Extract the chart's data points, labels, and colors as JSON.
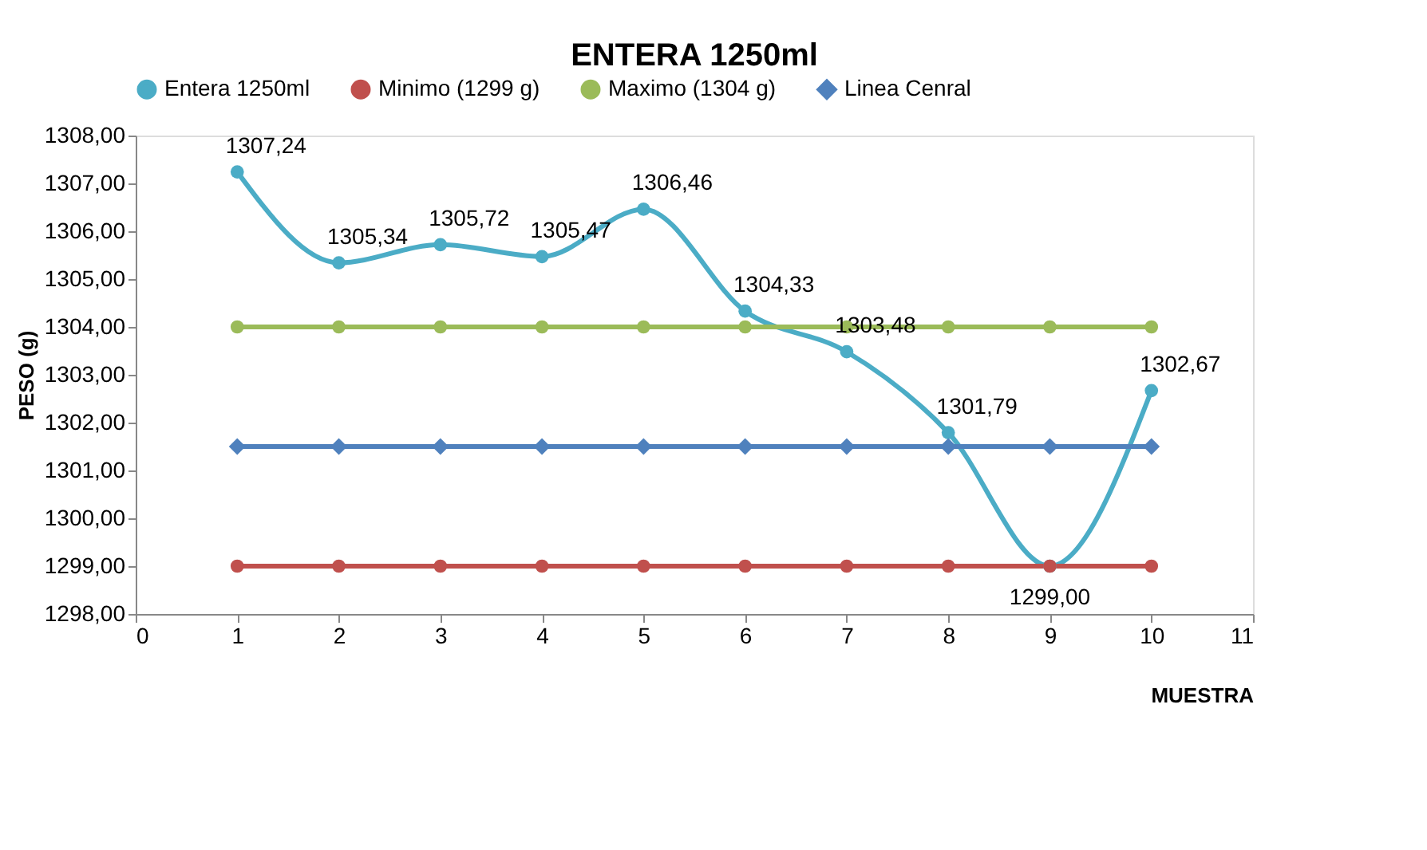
{
  "chart_data": {
    "type": "line",
    "title": "ENTERA 1250ml",
    "xlabel": "MUESTRA",
    "ylabel": "PESO (g)",
    "x": [
      1,
      2,
      3,
      4,
      5,
      6,
      7,
      8,
      9,
      10
    ],
    "series": [
      {
        "name": "Entera 1250ml",
        "color": "#4bacc6",
        "marker": "circle",
        "values": [
          1307.24,
          1305.34,
          1305.72,
          1305.47,
          1306.46,
          1304.33,
          1303.48,
          1301.79,
          1299.0,
          1302.67
        ],
        "value_labels": [
          "1307,24",
          "1305,34",
          "1305,72",
          "1305,47",
          "1306,46",
          "1304,33",
          "1303,48",
          "1301,79",
          "1299,00",
          "1302,67"
        ]
      },
      {
        "name": "Minimo (1299 g)",
        "color": "#c0504d",
        "marker": "circle",
        "values": [
          1299,
          1299,
          1299,
          1299,
          1299,
          1299,
          1299,
          1299,
          1299,
          1299
        ]
      },
      {
        "name": "Maximo (1304 g)",
        "color": "#9bbb59",
        "marker": "circle",
        "values": [
          1304,
          1304,
          1304,
          1304,
          1304,
          1304,
          1304,
          1304,
          1304,
          1304
        ]
      },
      {
        "name": "Linea Cenral",
        "color": "#4f81bd",
        "marker": "diamond",
        "values": [
          1301.5,
          1301.5,
          1301.5,
          1301.5,
          1301.5,
          1301.5,
          1301.5,
          1301.5,
          1301.5,
          1301.5
        ]
      }
    ],
    "xlim": [
      0,
      11
    ],
    "xticks": [
      0,
      1,
      2,
      3,
      4,
      5,
      6,
      7,
      8,
      9,
      10,
      11
    ],
    "ylim": [
      1298,
      1308
    ],
    "yticks": [
      {
        "value": 1298,
        "label": "1298,00"
      },
      {
        "value": 1299,
        "label": "1299,00"
      },
      {
        "value": 1300,
        "label": "1300,00"
      },
      {
        "value": 1301,
        "label": "1301,00"
      },
      {
        "value": 1302,
        "label": "1302,00"
      },
      {
        "value": 1303,
        "label": "1303,00"
      },
      {
        "value": 1304,
        "label": "1304,00"
      },
      {
        "value": 1305,
        "label": "1305,00"
      },
      {
        "value": 1306,
        "label": "1306,00"
      },
      {
        "value": 1307,
        "label": "1307,00"
      },
      {
        "value": 1308,
        "label": "1308,00"
      }
    ],
    "legend": "top",
    "grid": false,
    "line_style": "solid"
  }
}
